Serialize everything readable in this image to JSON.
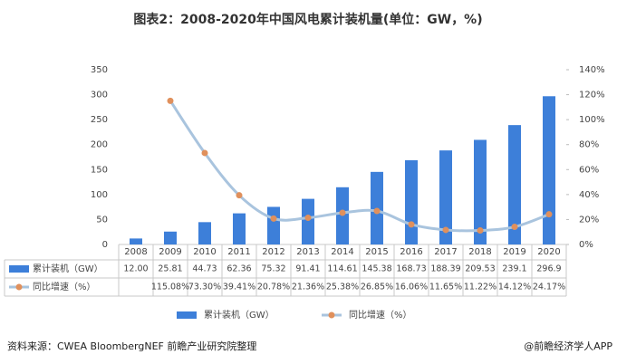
{
  "chart_data": {
    "type": "bar_line",
    "title": "图表2：2008-2020年中国风电累计装机量(单位：GW，%)",
    "source": "资料来源：CWEA BloombergNEF 前瞻产业研究院整理",
    "watermark": "@前瞻经济学人APP",
    "categories": [
      "2008",
      "2009",
      "2010",
      "2011",
      "2012",
      "2013",
      "2014",
      "2015",
      "2016",
      "2017",
      "2018",
      "2019",
      "2020"
    ],
    "series": [
      {
        "name": "累计装机（GW）",
        "type": "bar",
        "color": "#3d7fd9",
        "values": [
          12.0,
          25.81,
          44.73,
          62.36,
          75.32,
          91.41,
          114.61,
          145.38,
          168.73,
          188.39,
          209.53,
          239.1,
          296.9
        ],
        "value_labels": [
          "12.00",
          "25.81",
          "44.73",
          "62.36",
          "75.32",
          "91.41",
          "114.61",
          "145.38",
          "168.73",
          "188.39",
          "209.53",
          "239.1",
          "296.9"
        ]
      },
      {
        "name": "同比增速（%）",
        "type": "line",
        "axis": "y2",
        "color": "#a9c4de",
        "marker_color": "#e0905c",
        "values": [
          null,
          115.08,
          73.3,
          39.41,
          20.78,
          21.36,
          25.38,
          26.85,
          16.06,
          11.65,
          11.22,
          14.12,
          24.17
        ],
        "value_labels": [
          null,
          "115.08%",
          "73.30%",
          "39.41%",
          "20.78%",
          "21.36%",
          "25.38%",
          "26.85%",
          "16.06%",
          "11.65%",
          "11.22%",
          "14.12%",
          "24.17%"
        ]
      }
    ],
    "ylim": [
      0,
      350
    ],
    "yticks": [
      0,
      50,
      100,
      150,
      200,
      250,
      300,
      350
    ],
    "y2lim": [
      0,
      140
    ],
    "y2ticks": [
      {
        "value": 0,
        "label": "0%"
      },
      {
        "value": 20,
        "label": "20%"
      },
      {
        "value": 40,
        "label": "40%"
      },
      {
        "value": 60,
        "label": "60%"
      },
      {
        "value": 80,
        "label": "80%"
      },
      {
        "value": 100,
        "label": "100%"
      },
      {
        "value": 120,
        "label": "120%"
      },
      {
        "value": 140,
        "label": "140%"
      }
    ]
  }
}
